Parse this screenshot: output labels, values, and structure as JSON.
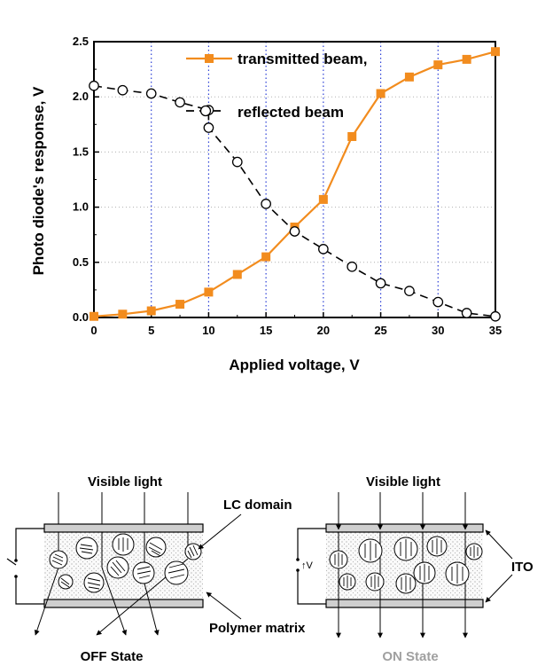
{
  "chart_data": {
    "type": "line",
    "xlabel": "Applied voltage, V",
    "ylabel": "Photo diode's response, V",
    "xlim": [
      0,
      35
    ],
    "ylim": [
      0,
      2.5
    ],
    "xticks": [
      "0",
      "5",
      "10",
      "15",
      "20",
      "25",
      "30",
      "35"
    ],
    "yticks": [
      "0.0",
      "0.5",
      "1.0",
      "1.5",
      "2.0",
      "2.5"
    ],
    "vertical_grid": "blue dotted at each major x tick",
    "horizontal_grid": "grey dotted at each major y tick",
    "legend_placement": "top-center",
    "series": [
      {
        "name": "transmitted beam,",
        "color": "#f28c1e",
        "marker": "filled-square",
        "x": [
          0,
          2.5,
          5,
          7.5,
          10,
          12.5,
          15,
          17.5,
          20,
          22.5,
          25,
          27.5,
          30,
          32.5,
          35
        ],
        "y": [
          0.01,
          0.03,
          0.06,
          0.12,
          0.23,
          0.39,
          0.55,
          0.82,
          1.07,
          1.64,
          2.03,
          2.18,
          2.29,
          2.34,
          2.41
        ]
      },
      {
        "name": "reflected beam",
        "color": "#000000",
        "marker": "open-circle",
        "x": [
          0,
          2.5,
          5,
          7.5,
          10,
          10,
          12.5,
          15,
          17.5,
          20,
          22.5,
          25,
          27.5,
          30,
          32.5,
          35
        ],
        "y": [
          2.1,
          2.06,
          2.03,
          1.95,
          1.88,
          1.72,
          1.41,
          1.03,
          0.78,
          0.62,
          0.46,
          0.31,
          0.24,
          0.14,
          0.04,
          0.01
        ]
      }
    ]
  },
  "diagram": {
    "left_top_label": "Visible light",
    "right_top_label": "Visible light",
    "lc_domain_label": "LC domain",
    "polymer_label": "Polymer matrix",
    "ito_label": "ITO",
    "off_label": "OFF State",
    "on_label": "ON State",
    "voltage_label": "↑V"
  }
}
